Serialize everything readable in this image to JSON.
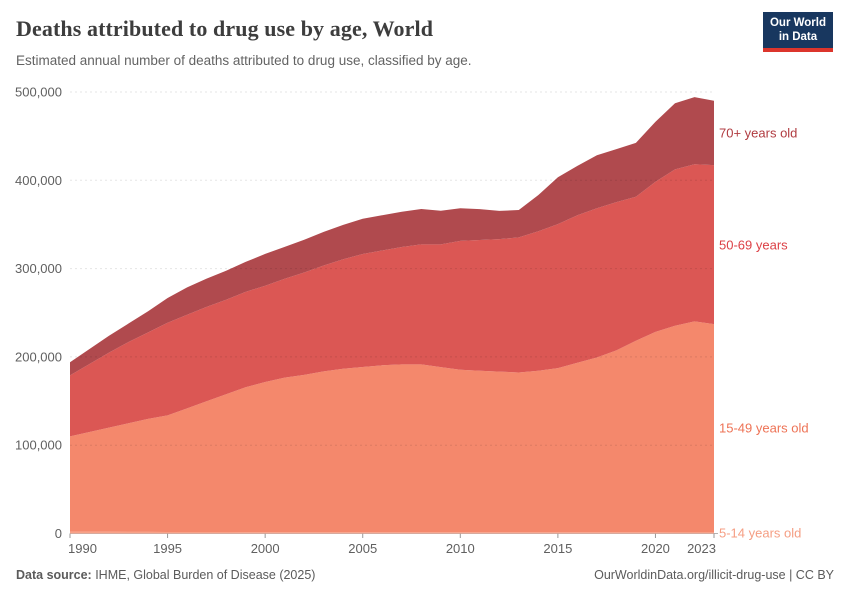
{
  "header": {
    "title": "Deaths attributed to drug use by age, World",
    "subtitle": "Estimated annual number of deaths attributed to drug use, classified by age.",
    "logo_line1": "Our World",
    "logo_line2": "in Data"
  },
  "footer": {
    "source_label": "Data source:",
    "source_text": " IHME, Global Burden of Disease (2025)",
    "link_text": "OurWorldinData.org/illicit-drug-use | CC BY"
  },
  "colors": {
    "grid": "rgba(0,0,0,0.10)",
    "zero_line": "#b3b3b3",
    "tick": "#999999",
    "axis_text": "#606060"
  },
  "chart_data": {
    "type": "area",
    "stacked": true,
    "grid": "horizontal-dashed",
    "legend_position": "right-edge-labels",
    "xlabel": "",
    "ylabel": "",
    "ylim": [
      0,
      500000
    ],
    "yticks": [
      0,
      100000,
      200000,
      300000,
      400000,
      500000
    ],
    "xticks": [
      1990,
      1995,
      2000,
      2005,
      2010,
      2015,
      2020,
      2023
    ],
    "x": [
      1990,
      1991,
      1992,
      1993,
      1994,
      1995,
      1996,
      1997,
      1998,
      1999,
      2000,
      2001,
      2002,
      2003,
      2004,
      2005,
      2006,
      2007,
      2008,
      2009,
      2010,
      2011,
      2012,
      2013,
      2014,
      2015,
      2016,
      2017,
      2018,
      2019,
      2020,
      2021,
      2022,
      2023
    ],
    "series": [
      {
        "name": "5-14 years old",
        "color": "#f8a288",
        "label_color": "#f59e83",
        "values": [
          2000,
          1950,
          1900,
          1850,
          1800,
          1750,
          1700,
          1680,
          1660,
          1640,
          1620,
          1600,
          1580,
          1560,
          1540,
          1520,
          1500,
          1480,
          1460,
          1440,
          1420,
          1400,
          1390,
          1380,
          1370,
          1360,
          1350,
          1340,
          1330,
          1320,
          1310,
          1300,
          1250,
          1200
        ]
      },
      {
        "name": "15-49 years old",
        "color": "#f4886c",
        "label_color": "#ee7356",
        "values": [
          108000,
          113000,
          118000,
          123000,
          128000,
          132000,
          140000,
          148000,
          156000,
          164000,
          170000,
          175000,
          178000,
          182000,
          185000,
          187000,
          189000,
          190000,
          190000,
          187000,
          184000,
          183000,
          182000,
          181000,
          183000,
          186000,
          192000,
          198000,
          206000,
          217000,
          227000,
          234000,
          239000,
          236000
        ]
      },
      {
        "name": "50-69 years",
        "color": "#db5754",
        "label_color": "#dc4046",
        "values": [
          69000,
          77000,
          85000,
          92000,
          98000,
          105000,
          106000,
          107000,
          107000,
          108000,
          109000,
          112000,
          116000,
          120000,
          124000,
          128000,
          130000,
          133000,
          136000,
          139000,
          146000,
          148000,
          150000,
          153000,
          158000,
          163000,
          167000,
          169000,
          168000,
          163000,
          170000,
          177000,
          178000,
          180000
        ]
      },
      {
        "name": "70+ years old",
        "color": "#b04a4e",
        "label_color": "#b03b40",
        "values": [
          15000,
          17000,
          19000,
          21000,
          24000,
          28000,
          31000,
          32000,
          33000,
          34000,
          36000,
          36000,
          37000,
          38000,
          39000,
          40000,
          40000,
          40000,
          40000,
          38000,
          37000,
          35000,
          32000,
          31000,
          41000,
          53000,
          56000,
          60000,
          60000,
          61000,
          68000,
          75000,
          76000,
          73000
        ]
      }
    ]
  }
}
